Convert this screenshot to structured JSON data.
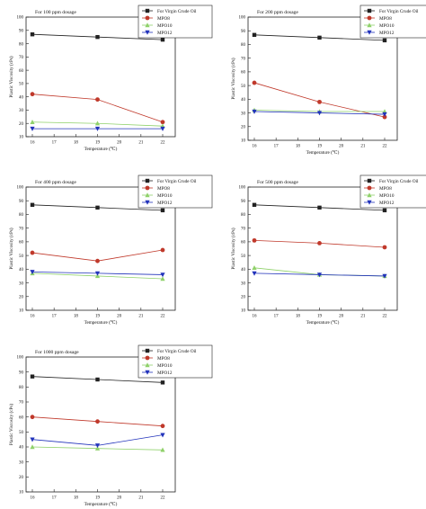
{
  "colors": {
    "virgin": "#222222",
    "mpo8": "#c0392b",
    "mpo10": "#8fd16a",
    "mpo12": "#2233bb"
  },
  "chart_data": [
    {
      "type": "line",
      "title": "For 100 ppm dosage",
      "xlabel": "Temperature (℃)",
      "ylabel": "Plastic Viscosity (cPs)",
      "xlim": [
        16,
        22
      ],
      "ylim": [
        10,
        100
      ],
      "xticks": [
        16,
        17,
        18,
        19,
        20,
        21,
        22
      ],
      "yticks": [
        10,
        20,
        30,
        40,
        50,
        60,
        70,
        80,
        90,
        100
      ],
      "legend_position": "top-right",
      "x": [
        16,
        19,
        22
      ],
      "series": [
        {
          "name": "For Virgin Crude Oil",
          "values": [
            87,
            85,
            83
          ]
        },
        {
          "name": "MPO8",
          "values": [
            42,
            38,
            21
          ]
        },
        {
          "name": "MPO10",
          "values": [
            21,
            20,
            18
          ]
        },
        {
          "name": "MPO12",
          "values": [
            16,
            16,
            16
          ]
        }
      ]
    },
    {
      "type": "line",
      "title": "For 200 ppm dosage",
      "xlabel": "Temperature (℃)",
      "ylabel": "Plastic Viscosity (cPs)",
      "xlim": [
        16,
        22
      ],
      "ylim": [
        10,
        100
      ],
      "xticks": [
        16,
        17,
        18,
        19,
        20,
        21,
        22
      ],
      "yticks": [
        10,
        20,
        30,
        40,
        50,
        60,
        70,
        80,
        90,
        100
      ],
      "legend_position": "top-right",
      "x": [
        16,
        19,
        22
      ],
      "series": [
        {
          "name": "For Virgin Crude Oil",
          "values": [
            87,
            85,
            83
          ]
        },
        {
          "name": "MPO8",
          "values": [
            52,
            38,
            27
          ]
        },
        {
          "name": "MPO10",
          "values": [
            32,
            31,
            31
          ]
        },
        {
          "name": "MPO12",
          "values": [
            31,
            30,
            29
          ]
        }
      ]
    },
    {
      "type": "line",
      "title": "For 400 ppm dosage",
      "xlabel": "Temperature (℃)",
      "ylabel": "Plastic Viscosity (cPs)",
      "xlim": [
        16,
        22
      ],
      "ylim": [
        10,
        100
      ],
      "xticks": [
        16,
        17,
        18,
        19,
        20,
        21,
        22
      ],
      "yticks": [
        10,
        20,
        30,
        40,
        50,
        60,
        70,
        80,
        90,
        100
      ],
      "legend_position": "top-right",
      "x": [
        16,
        19,
        22
      ],
      "series": [
        {
          "name": "For Virgin Crude Oil",
          "values": [
            87,
            85,
            83
          ]
        },
        {
          "name": "MPO8",
          "values": [
            52,
            46,
            54
          ]
        },
        {
          "name": "MPO10",
          "values": [
            37,
            35,
            33
          ]
        },
        {
          "name": "MPO12",
          "values": [
            38,
            37,
            36
          ]
        }
      ]
    },
    {
      "type": "line",
      "title": "For 500 ppm dosage",
      "xlabel": "Temperature (℃)",
      "ylabel": "Plastic Viscosity (cPs)",
      "xlim": [
        16,
        22
      ],
      "ylim": [
        10,
        100
      ],
      "xticks": [
        16,
        17,
        18,
        19,
        20,
        21,
        22
      ],
      "yticks": [
        10,
        20,
        30,
        40,
        50,
        60,
        70,
        80,
        90,
        100
      ],
      "legend_position": "top-right",
      "x": [
        16,
        19,
        22
      ],
      "series": [
        {
          "name": "For Virgin Crude Oil",
          "values": [
            87,
            85,
            83
          ]
        },
        {
          "name": "MPO8",
          "values": [
            61,
            59,
            56
          ]
        },
        {
          "name": "MPO10",
          "values": [
            41,
            36,
            35
          ]
        },
        {
          "name": "MPO12",
          "values": [
            37,
            36,
            35
          ]
        }
      ]
    },
    {
      "type": "line",
      "title": "For 1000 ppm dosage",
      "xlabel": "Temperature (℃)",
      "ylabel": "Plastic Viscosity (cPs)",
      "xlim": [
        16,
        22
      ],
      "ylim": [
        10,
        100
      ],
      "xticks": [
        16,
        17,
        18,
        19,
        20,
        21,
        22
      ],
      "yticks": [
        10,
        20,
        30,
        40,
        50,
        60,
        70,
        80,
        90,
        100
      ],
      "legend_position": "top-right",
      "x": [
        16,
        19,
        22
      ],
      "series": [
        {
          "name": "For Virgin Crude Oil",
          "values": [
            87,
            85,
            83
          ]
        },
        {
          "name": "MPO8",
          "values": [
            60,
            57,
            54
          ]
        },
        {
          "name": "MPO10",
          "values": [
            40,
            39,
            38
          ]
        },
        {
          "name": "MPO12",
          "values": [
            45,
            41,
            48
          ]
        }
      ]
    }
  ]
}
